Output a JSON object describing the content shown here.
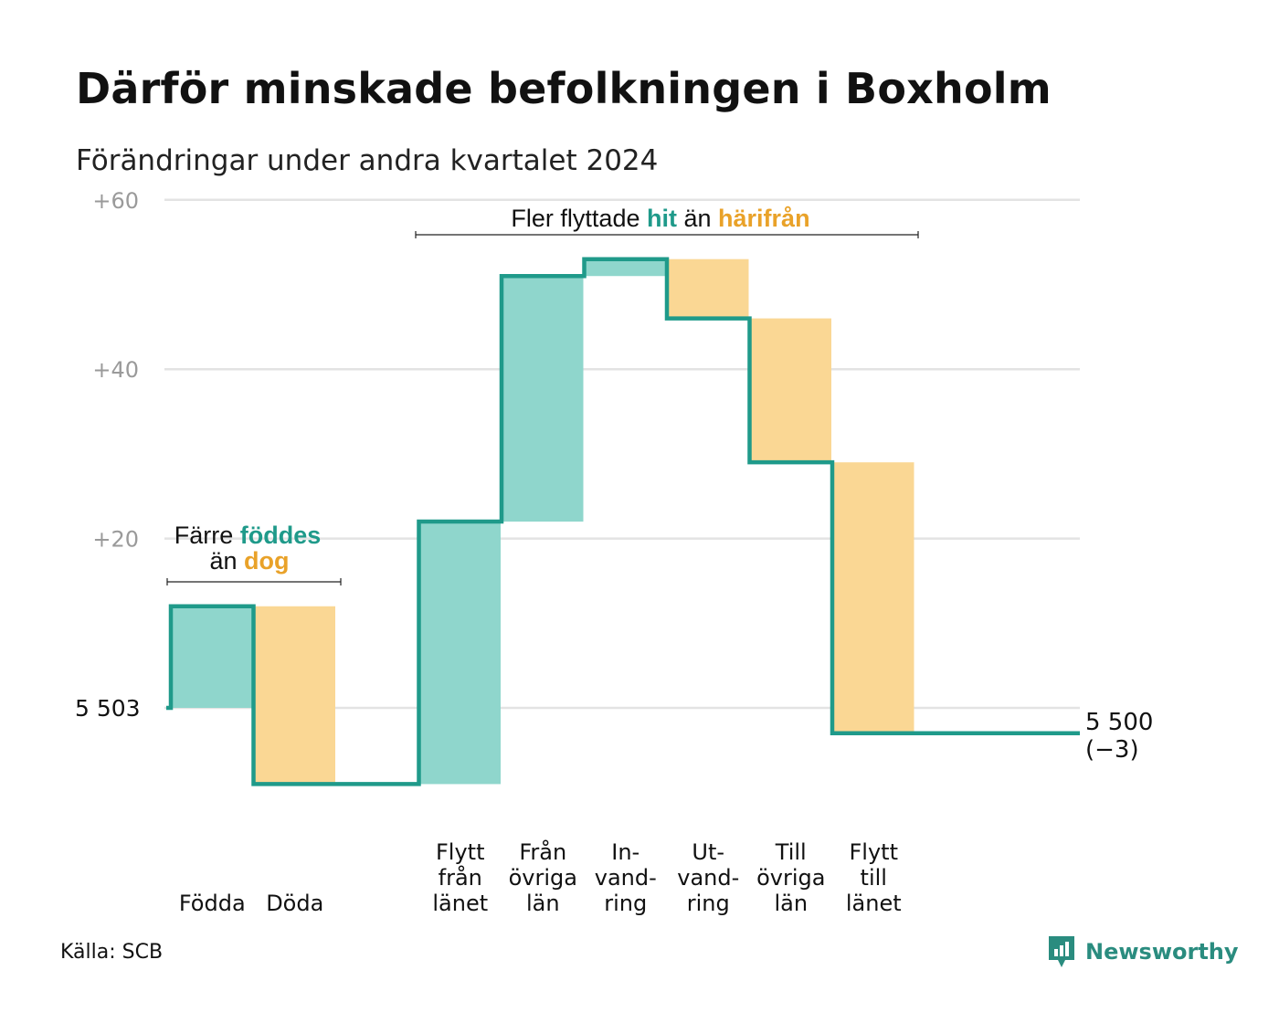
{
  "title": "Därför minskade befolkningen i Boxholm",
  "subtitle": "Förändringar under andra kvartalet 2024",
  "source": "Källa: SCB",
  "brand": {
    "name": "Newsworthy"
  },
  "colors": {
    "teal": "#1f9a8a",
    "teal_fill": "#8fd6cc",
    "orange": "#e9a229",
    "orange_fill": "#fad794",
    "grid": "#e3e3e3",
    "tick": "#9a9a9a"
  },
  "annotations": {
    "births": {
      "line1": "Färre",
      "word_teal": "föddes",
      "line2_pre": "än",
      "word_orange": "dog"
    },
    "migration": {
      "pre": "Fler flyttade",
      "word_teal": "hit",
      "mid": "än",
      "word_orange": "härifrån"
    }
  },
  "chart_data": {
    "type": "waterfall",
    "start": {
      "label": "5  503",
      "value": 5503
    },
    "end": {
      "label": "5 500",
      "change_label": "(−3)",
      "value": 5500
    },
    "y_axis": {
      "ticks": [
        20,
        40,
        60
      ],
      "tick_labels": [
        "+20",
        "+40",
        "+60"
      ],
      "range": [
        -12,
        62
      ],
      "grid": true
    },
    "steps": [
      {
        "label_lines": [
          "Födda"
        ],
        "value": 12,
        "sign": "in"
      },
      {
        "label_lines": [
          "Döda"
        ],
        "value": -21,
        "sign": "out"
      },
      {
        "label_lines": [],
        "value": 0,
        "sign": "none"
      },
      {
        "label_lines": [
          "Flytt",
          "från",
          "länet"
        ],
        "value": 31,
        "sign": "in"
      },
      {
        "label_lines": [
          "Från",
          "övriga",
          "län"
        ],
        "value": 29,
        "sign": "in"
      },
      {
        "label_lines": [
          "In-",
          "vand-",
          "ring"
        ],
        "value": 2,
        "sign": "in"
      },
      {
        "label_lines": [
          "Ut-",
          "vand-",
          "ring"
        ],
        "value": -7,
        "sign": "out"
      },
      {
        "label_lines": [
          "Till",
          "övriga",
          "län"
        ],
        "value": -17,
        "sign": "out"
      },
      {
        "label_lines": [
          "Flytt",
          "till",
          "länet"
        ],
        "value": -32,
        "sign": "out"
      }
    ]
  }
}
